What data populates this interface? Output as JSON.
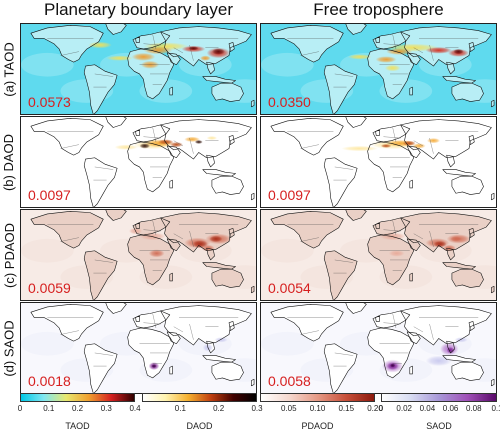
{
  "column_titles": [
    "Planetary boundary layer",
    "Free troposphere"
  ],
  "rows": [
    {
      "label": "(a) TAOD",
      "values": [
        "0.0573",
        "0.0350"
      ],
      "theme": "taod"
    },
    {
      "label": "(b) DAOD",
      "values": [
        "0.0097",
        "0.0097"
      ],
      "theme": "daod"
    },
    {
      "label": "(c) PDAOD",
      "values": [
        "0.0059",
        "0.0054"
      ],
      "theme": "pdaod"
    },
    {
      "label": "(d) SAOD",
      "values": [
        "0.0018",
        "0.0058"
      ],
      "theme": "saod"
    }
  ],
  "colorbars": [
    {
      "title": "TAOD",
      "ticks": [
        "0",
        "0.1",
        "0.2",
        "0.3",
        "0.4"
      ],
      "tick_values": [
        0,
        0.1,
        0.2,
        0.3,
        0.4
      ],
      "range": [
        0,
        0.4
      ],
      "colors": [
        "#00c8e6",
        "#7fe6f2",
        "#e8e870",
        "#f0a030",
        "#d42020",
        "#300000"
      ]
    },
    {
      "title": "DAOD",
      "ticks": [
        "0.1",
        "0.2",
        "0.3"
      ],
      "tick_values": [
        0.1,
        0.2,
        0.3
      ],
      "range": [
        0,
        0.3
      ],
      "colors": [
        "#ffffff",
        "#fff3b0",
        "#f5b030",
        "#c04010",
        "#400000",
        "#000000"
      ]
    },
    {
      "title": "PDAOD",
      "ticks": [
        "0.05",
        "0.10",
        "0.15",
        "0.20"
      ],
      "tick_values": [
        0.05,
        0.1,
        0.15,
        0.2
      ],
      "range": [
        0,
        0.2
      ],
      "colors": [
        "#ffffff",
        "#f5d8cf",
        "#e59a86",
        "#c8503a",
        "#8c1a0e"
      ]
    },
    {
      "title": "SAOD",
      "ticks": [
        "0",
        "0.02",
        "0.04",
        "0.06",
        "0.08",
        "0.1"
      ],
      "tick_values": [
        0,
        0.02,
        0.04,
        0.06,
        0.08,
        0.1
      ],
      "range": [
        0,
        0.1
      ],
      "colors": [
        "#ffffff",
        "#d8dcf2",
        "#a898d8",
        "#a050b8",
        "#5a0a6a"
      ]
    }
  ],
  "theme_colors": {
    "taod": {
      "ocean": "#5fdaee",
      "ocean2": "#9aeaf4",
      "land": "#b8eef5",
      "hot": [
        "#f2e05a",
        "#f09a2a",
        "#d62a1a",
        "#5a0a0a"
      ]
    },
    "daod": {
      "ocean": "#ffffff",
      "ocean2": "#ffffff",
      "land": "#ffffff",
      "hot": [
        "#fde7a0",
        "#f4a832",
        "#b84812",
        "#2a0a02"
      ]
    },
    "pdaod": {
      "ocean": "#f7ebe6",
      "ocean2": "#f2e0d8",
      "land": "#ead0c6",
      "hot": [
        "#e8a998",
        "#d06a52",
        "#a82a16",
        "#701008"
      ]
    },
    "saod": {
      "ocean": "#f8f8fd",
      "ocean2": "#eceef9",
      "land": "#ffffff",
      "hot": [
        "#c8c8ee",
        "#b070c8",
        "#7a1a90",
        "#3a0042"
      ]
    }
  }
}
